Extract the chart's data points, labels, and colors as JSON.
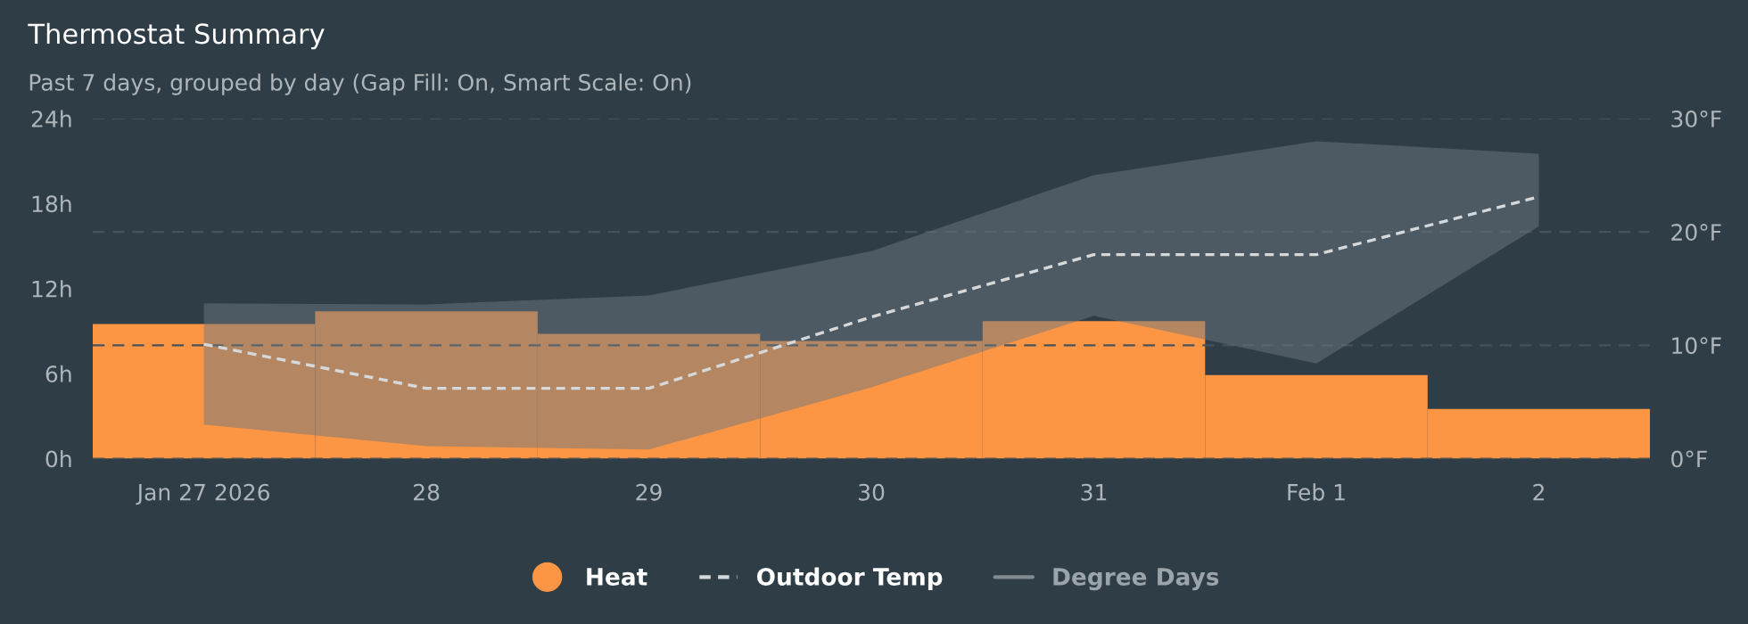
{
  "chart_data": {
    "type": "bar",
    "title": "Thermostat Summary",
    "subtitle": "Past 7 days, grouped by day (Gap Fill: On, Smart Scale: On)",
    "categories": [
      "Jan 27 2026",
      "28",
      "29",
      "30",
      "31",
      "Feb 1",
      "2"
    ],
    "series": [
      {
        "name": "Heat",
        "color": "#fd9644",
        "values": [
          9.5,
          10.4,
          8.8,
          8.3,
          9.7,
          5.9,
          3.5
        ]
      },
      {
        "name": "Outdoor Temp",
        "type": "line",
        "axis": "y2",
        "line_style": "dashed",
        "color": "#d5d9dc",
        "values": [
          10.1,
          6.2,
          6.2,
          12.5,
          18.0,
          18.0,
          23.1
        ],
        "lower": [
          3.0,
          1.1,
          0.8,
          6.3,
          12.6,
          8.4,
          20.5
        ],
        "upper": [
          13.7,
          13.6,
          14.4,
          18.3,
          25.0,
          28.0,
          26.9
        ]
      },
      {
        "name": "Degree Days",
        "type": "line",
        "color": "#7f8a91",
        "values": [
          null,
          null,
          null,
          null,
          null,
          null,
          null
        ]
      }
    ],
    "ylim": [
      0,
      24
    ],
    "yticks": [
      {
        "value": 0,
        "label": "0h"
      },
      {
        "value": 6,
        "label": "6h"
      },
      {
        "value": 12,
        "label": "12h"
      },
      {
        "value": 18,
        "label": "18h"
      },
      {
        "value": 24,
        "label": "24h"
      }
    ],
    "y2lim": [
      0,
      30
    ],
    "y2ticks": [
      {
        "value": 0,
        "label": "0°F"
      },
      {
        "value": 10,
        "label": "10°F"
      },
      {
        "value": 20,
        "label": "20°F"
      },
      {
        "value": 30,
        "label": "30°F"
      }
    ],
    "grid": "y",
    "legend": "bottom"
  }
}
